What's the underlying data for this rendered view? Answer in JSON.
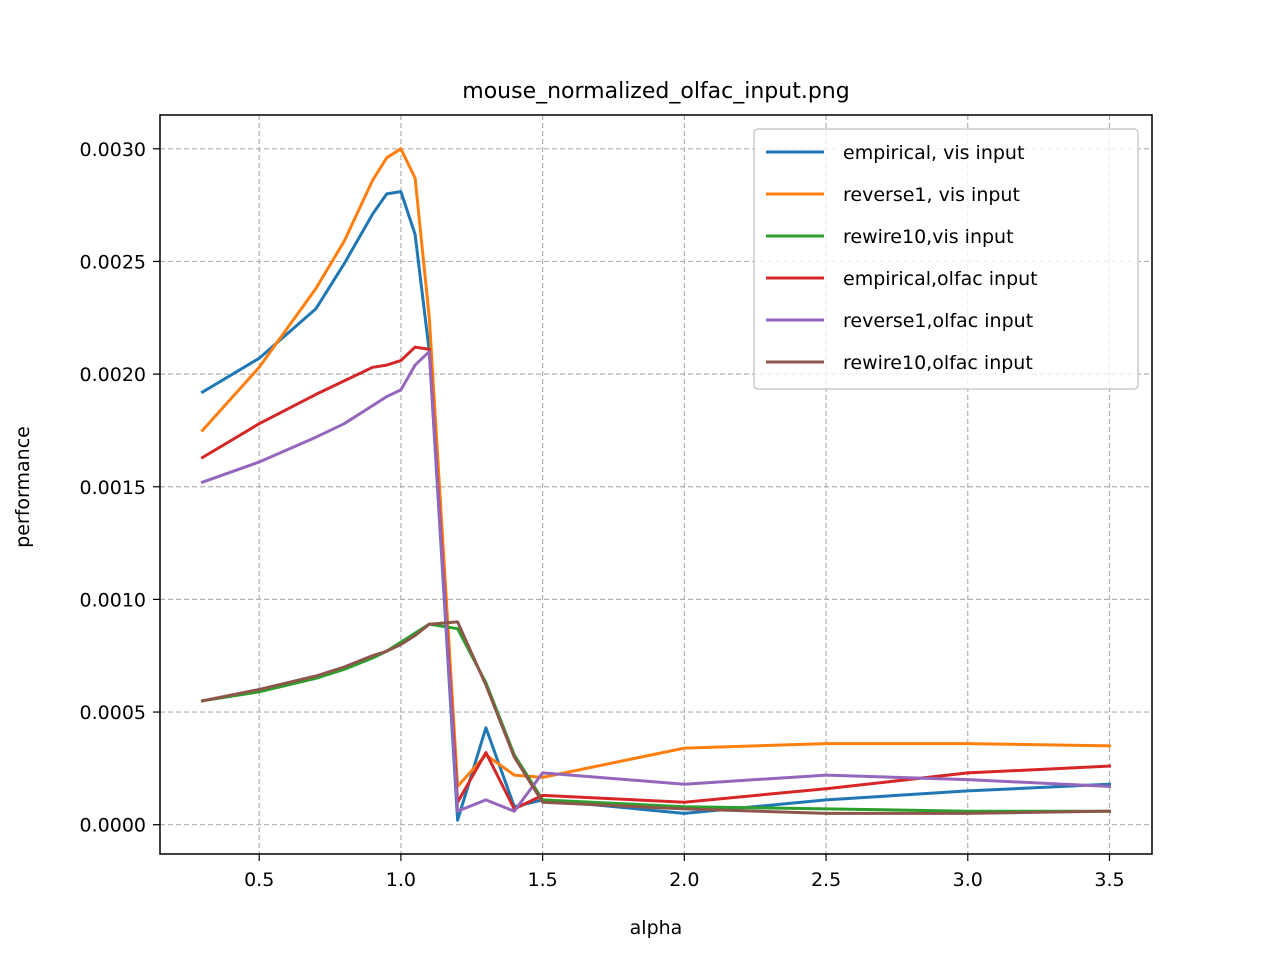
{
  "chart_data": {
    "type": "line",
    "title": "mouse_normalized_olfac_input.png",
    "xlabel": "alpha",
    "ylabel": "performance",
    "xlim": [
      0.15,
      3.65
    ],
    "ylim": [
      -0.00013,
      0.00315
    ],
    "xticks": [
      0.5,
      1.0,
      1.5,
      2.0,
      2.5,
      3.0,
      3.5
    ],
    "xtick_labels": [
      "0.5",
      "1.0",
      "1.5",
      "2.0",
      "2.5",
      "3.0",
      "3.5"
    ],
    "yticks": [
      0.0,
      0.0005,
      0.001,
      0.0015,
      0.002,
      0.0025,
      0.003
    ],
    "ytick_labels": [
      "0.0000",
      "0.0005",
      "0.0010",
      "0.0015",
      "0.0020",
      "0.0025",
      "0.0030"
    ],
    "grid": true,
    "legend_position": "upper right",
    "x": [
      0.3,
      0.5,
      0.7,
      0.8,
      0.9,
      0.95,
      1.0,
      1.05,
      1.1,
      1.2,
      1.3,
      1.4,
      1.5,
      2.0,
      2.5,
      3.0,
      3.5
    ],
    "series": [
      {
        "name": "empirical, vis input",
        "color": "#1f77b4",
        "values": [
          0.00192,
          0.00207,
          0.00229,
          0.00249,
          0.00271,
          0.0028,
          0.00281,
          0.00262,
          0.0021,
          2e-05,
          0.00043,
          8e-05,
          0.00011,
          5e-05,
          0.00011,
          0.00015,
          0.00018
        ]
      },
      {
        "name": "reverse1, vis input",
        "color": "#ff7f0e",
        "values": [
          0.00175,
          0.00203,
          0.00238,
          0.00259,
          0.00286,
          0.00296,
          0.003,
          0.00287,
          0.00225,
          0.00017,
          0.00031,
          0.00022,
          0.00021,
          0.00034,
          0.00036,
          0.00036,
          0.00035
        ]
      },
      {
        "name": "rewire10,vis input",
        "color": "#2ca02c",
        "values": [
          0.00055,
          0.00059,
          0.00065,
          0.00069,
          0.00074,
          0.00077,
          0.00081,
          0.00085,
          0.00089,
          0.00087,
          0.00063,
          0.00031,
          0.00011,
          8e-05,
          7e-05,
          6e-05,
          6e-05
        ]
      },
      {
        "name": "empirical,olfac input",
        "color": "#d62728",
        "values": [
          0.00163,
          0.00178,
          0.00191,
          0.00197,
          0.00203,
          0.00204,
          0.00206,
          0.00212,
          0.00211,
          0.0001,
          0.00032,
          7e-05,
          0.00013,
          0.0001,
          0.00016,
          0.00023,
          0.00026
        ]
      },
      {
        "name": "reverse1,olfac input",
        "color": "#9467bd",
        "values": [
          0.00152,
          0.00161,
          0.00172,
          0.00178,
          0.00186,
          0.0019,
          0.00193,
          0.00204,
          0.0021,
          6e-05,
          0.00011,
          6e-05,
          0.00023,
          0.00018,
          0.00022,
          0.0002,
          0.00017
        ]
      },
      {
        "name": "rewire10,olfac input",
        "color": "#8c564b",
        "values": [
          0.00055,
          0.0006,
          0.00066,
          0.0007,
          0.00075,
          0.00077,
          0.0008,
          0.00084,
          0.00089,
          0.0009,
          0.00062,
          0.0003,
          0.0001,
          7e-05,
          5e-05,
          5e-05,
          6e-05
        ]
      }
    ]
  }
}
